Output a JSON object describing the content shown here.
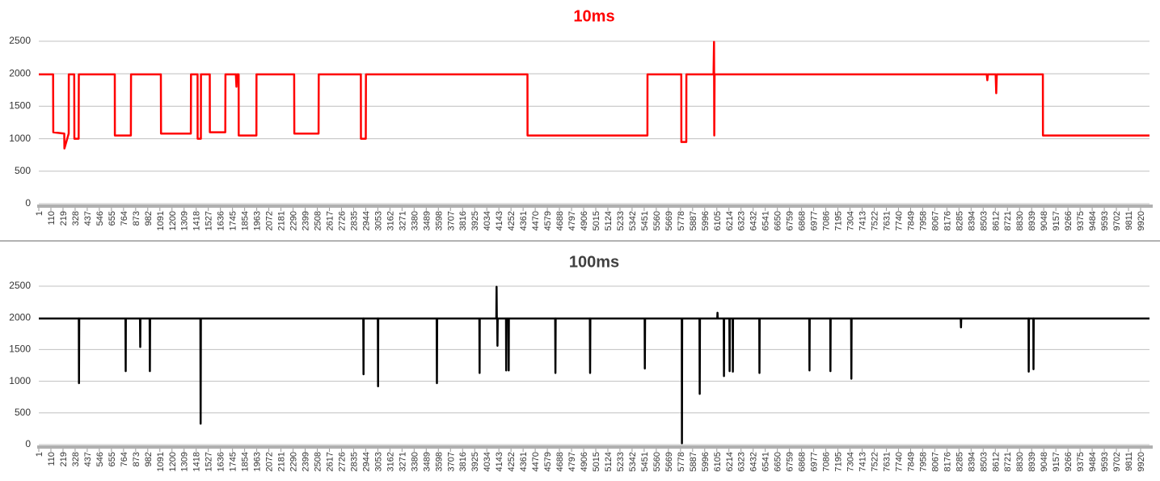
{
  "chart_data": [
    {
      "type": "line",
      "title": "10ms",
      "title_color": "#ff0000",
      "x": [
        1,
        130,
        131,
        230,
        232,
        270,
        271,
        320,
        321,
        360,
        361,
        685,
        686,
        830,
        831,
        1100,
        1101,
        1370,
        1371,
        1430,
        1431,
        1460,
        1461,
        1540,
        1541,
        1680,
        1681,
        1775,
        1780,
        1785,
        1800,
        1801,
        1960,
        1961,
        2300,
        2301,
        2520,
        2521,
        2900,
        2901,
        2945,
        2946,
        4400,
        4401,
        5480,
        5481,
        5785,
        5786,
        5830,
        5831,
        6075,
        6080,
        6082,
        6085,
        8535,
        8540,
        8545,
        8615,
        8620,
        8625,
        9040,
        9041,
        10000
      ],
      "series": [
        {
          "name": "10ms",
          "color": "#ff0000",
          "values": [
            1990,
            1990,
            1100,
            1080,
            850,
            1080,
            1990,
            1990,
            1000,
            1000,
            1990,
            1990,
            1050,
            1050,
            1990,
            1990,
            1080,
            1080,
            1990,
            1990,
            1000,
            1000,
            1990,
            1990,
            1100,
            1100,
            1990,
            1990,
            1800,
            1990,
            1990,
            1050,
            1050,
            1990,
            1990,
            1080,
            1080,
            1990,
            1990,
            1000,
            1000,
            1990,
            1990,
            1050,
            1050,
            1990,
            1990,
            950,
            950,
            1990,
            1990,
            2490,
            1050,
            1990,
            1990,
            1900,
            1990,
            1990,
            1700,
            1990,
            1990,
            1050,
            1050
          ]
        }
      ],
      "xlim": [
        1,
        10000
      ],
      "ylim": [
        0,
        2500
      ],
      "yticks": [
        0,
        500,
        1000,
        1500,
        2000,
        2500
      ],
      "grid": true,
      "xticks": [
        1,
        110,
        219,
        328,
        437,
        546,
        655,
        764,
        873,
        982,
        1091,
        1200,
        1309,
        1418,
        1527,
        1636,
        1745,
        1854,
        1963,
        2072,
        2181,
        2290,
        2399,
        2508,
        2617,
        2726,
        2835,
        2944,
        3053,
        3162,
        3271,
        3380,
        3489,
        3598,
        3707,
        3816,
        3925,
        4034,
        4143,
        4252,
        4361,
        4470,
        4579,
        4688,
        4797,
        4906,
        5015,
        5124,
        5233,
        5342,
        5451,
        5560,
        5669,
        5778,
        5887,
        5996,
        6105,
        6214,
        6323,
        6432,
        6541,
        6650,
        6759,
        6868,
        6977,
        7086,
        7195,
        7304,
        7413,
        7522,
        7631,
        7740,
        7849,
        7958,
        8067,
        8176,
        8285,
        8394,
        8503,
        8612,
        8721,
        8830,
        8939,
        9048,
        9157,
        9266,
        9375,
        9484,
        9593,
        9702,
        9811,
        9920
      ]
    },
    {
      "type": "line",
      "title": "100ms",
      "title_color": "#404040",
      "x": [
        1,
        361,
        363,
        365,
        781,
        783,
        785,
        912,
        914,
        916,
        999,
        1001,
        1003,
        1456,
        1458,
        1460,
        2922,
        2924,
        2926,
        3053,
        3055,
        3057,
        3583,
        3585,
        3587,
        3967,
        3969,
        3971,
        4120,
        4122,
        4124,
        4128,
        4130,
        4132,
        4207,
        4209,
        4211,
        4229,
        4231,
        4233,
        4650,
        4652,
        4654,
        4962,
        4964,
        4966,
        5455,
        5457,
        5459,
        5789,
        5791,
        5793,
        5949,
        5951,
        5953,
        6109,
        6111,
        6113,
        6167,
        6169,
        6171,
        6218,
        6220,
        6222,
        6247,
        6249,
        6251,
        6487,
        6489,
        6491,
        6937,
        6939,
        6941,
        7126,
        7128,
        7130,
        7314,
        7316,
        7318,
        8301,
        8303,
        8305,
        8911,
        8913,
        8915,
        8954,
        8956,
        8958,
        10000
      ],
      "series": [
        {
          "name": "100ms",
          "color": "#000000",
          "values": [
            1990,
            1990,
            970,
            1990,
            1990,
            1160,
            1990,
            1990,
            1540,
            1990,
            1990,
            1160,
            1990,
            1990,
            330,
            1990,
            1990,
            1110,
            1990,
            1990,
            920,
            1990,
            1990,
            970,
            1990,
            1990,
            1130,
            1990,
            1990,
            2490,
            1990,
            1990,
            1560,
            1990,
            1990,
            1170,
            1990,
            1990,
            1170,
            1990,
            1990,
            1130,
            1990,
            1990,
            1130,
            1990,
            1990,
            1200,
            1990,
            1990,
            20,
            1990,
            1990,
            800,
            1990,
            1990,
            2080,
            1990,
            1990,
            1080,
            1990,
            1990,
            1160,
            1990,
            1990,
            1150,
            1990,
            1990,
            1130,
            1990,
            1990,
            1170,
            1990,
            1990,
            1160,
            1990,
            1990,
            1040,
            1990,
            1990,
            1850,
            1990,
            1990,
            1150,
            1990,
            1990,
            1190,
            1990,
            1990
          ]
        }
      ],
      "xlim": [
        1,
        10000
      ],
      "ylim": [
        0,
        2500
      ],
      "yticks": [
        0,
        500,
        1000,
        1500,
        2000,
        2500
      ],
      "grid": true,
      "xticks": [
        1,
        110,
        219,
        328,
        437,
        546,
        655,
        764,
        873,
        982,
        1091,
        1200,
        1309,
        1418,
        1527,
        1636,
        1745,
        1854,
        1963,
        2072,
        2181,
        2290,
        2399,
        2508,
        2617,
        2726,
        2835,
        2944,
        3053,
        3162,
        3271,
        3380,
        3489,
        3598,
        3707,
        3816,
        3925,
        4034,
        4143,
        4252,
        4361,
        4470,
        4579,
        4688,
        4797,
        4906,
        5015,
        5124,
        5233,
        5342,
        5451,
        5560,
        5669,
        5778,
        5887,
        5996,
        6105,
        6214,
        6323,
        6432,
        6541,
        6650,
        6759,
        6868,
        6977,
        7086,
        7195,
        7304,
        7413,
        7522,
        7631,
        7740,
        7849,
        7958,
        8067,
        8176,
        8285,
        8394,
        8503,
        8612,
        8721,
        8830,
        8939,
        9048,
        9157,
        9266,
        9375,
        9484,
        9593,
        9702,
        9811,
        9920
      ]
    }
  ]
}
